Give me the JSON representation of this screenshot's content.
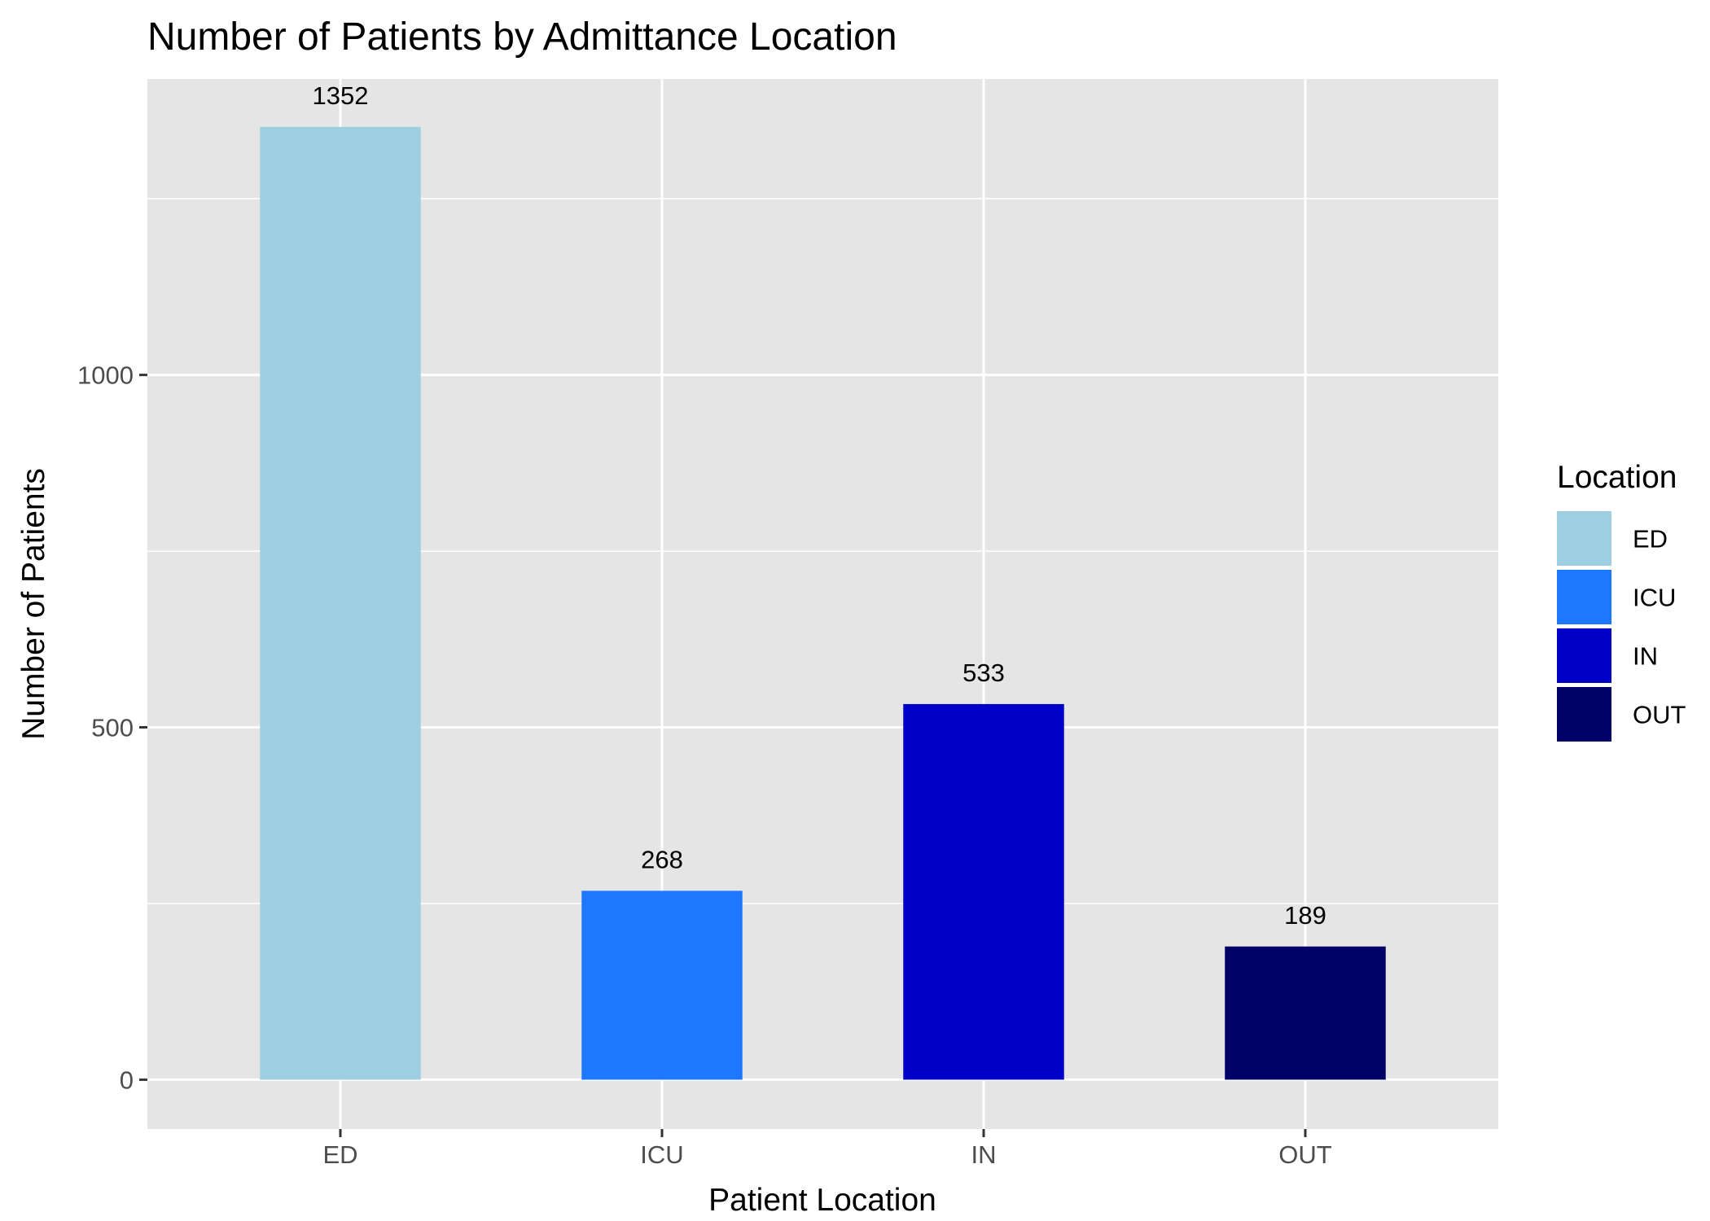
{
  "chart_data": {
    "type": "bar",
    "title": "Number of Patients by Admittance Location",
    "xlabel": "Patient Location",
    "ylabel": "Number of Patients",
    "categories": [
      "ED",
      "ICU",
      "IN",
      "OUT"
    ],
    "values": [
      1352,
      268,
      533,
      189
    ],
    "data_labels": [
      "1352",
      "268",
      "533",
      "189"
    ],
    "colors": [
      "#9ecfe1",
      "#1e78ff",
      "#0000c8",
      "#000066"
    ],
    "ylim": [
      -70,
      1420
    ],
    "yticks": [
      0,
      500,
      1000
    ],
    "ytick_labels": [
      "0",
      "500",
      "1000"
    ],
    "grid": true,
    "panel_background": "#e5e5e5",
    "legend": {
      "title": "Location",
      "placement": "right",
      "entries": [
        "ED",
        "ICU",
        "IN",
        "OUT"
      ]
    }
  }
}
